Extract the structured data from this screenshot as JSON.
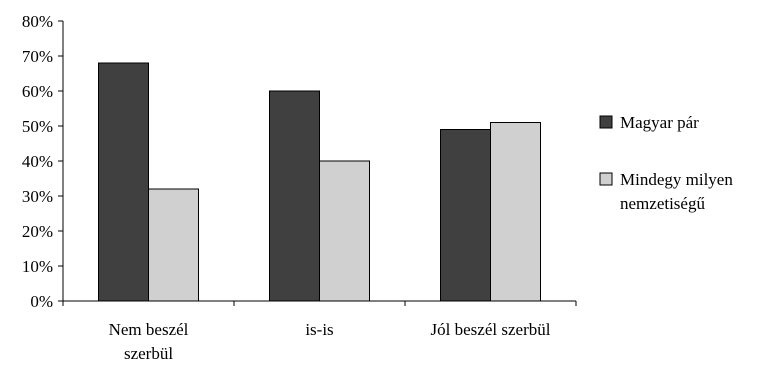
{
  "chart_data": {
    "type": "bar",
    "title": "",
    "xlabel": "",
    "ylabel": "",
    "categories": [
      [
        "Nem beszél",
        "szerbül"
      ],
      [
        "is-is"
      ],
      [
        "Jól beszél szerbül"
      ]
    ],
    "series": [
      {
        "name": "Magyar pár",
        "values": [
          68,
          60,
          49
        ],
        "color": "#404040"
      },
      {
        "name": [
          "Mindegy milyen",
          "nemzetiségű"
        ],
        "values": [
          32,
          40,
          51
        ],
        "color": "#d0d0d0"
      }
    ],
    "ylim": [
      0,
      80
    ],
    "yticks": [
      "0%",
      "10%",
      "20%",
      "30%",
      "40%",
      "50%",
      "60%",
      "70%",
      "80%"
    ],
    "grid": false,
    "legend": "right"
  }
}
